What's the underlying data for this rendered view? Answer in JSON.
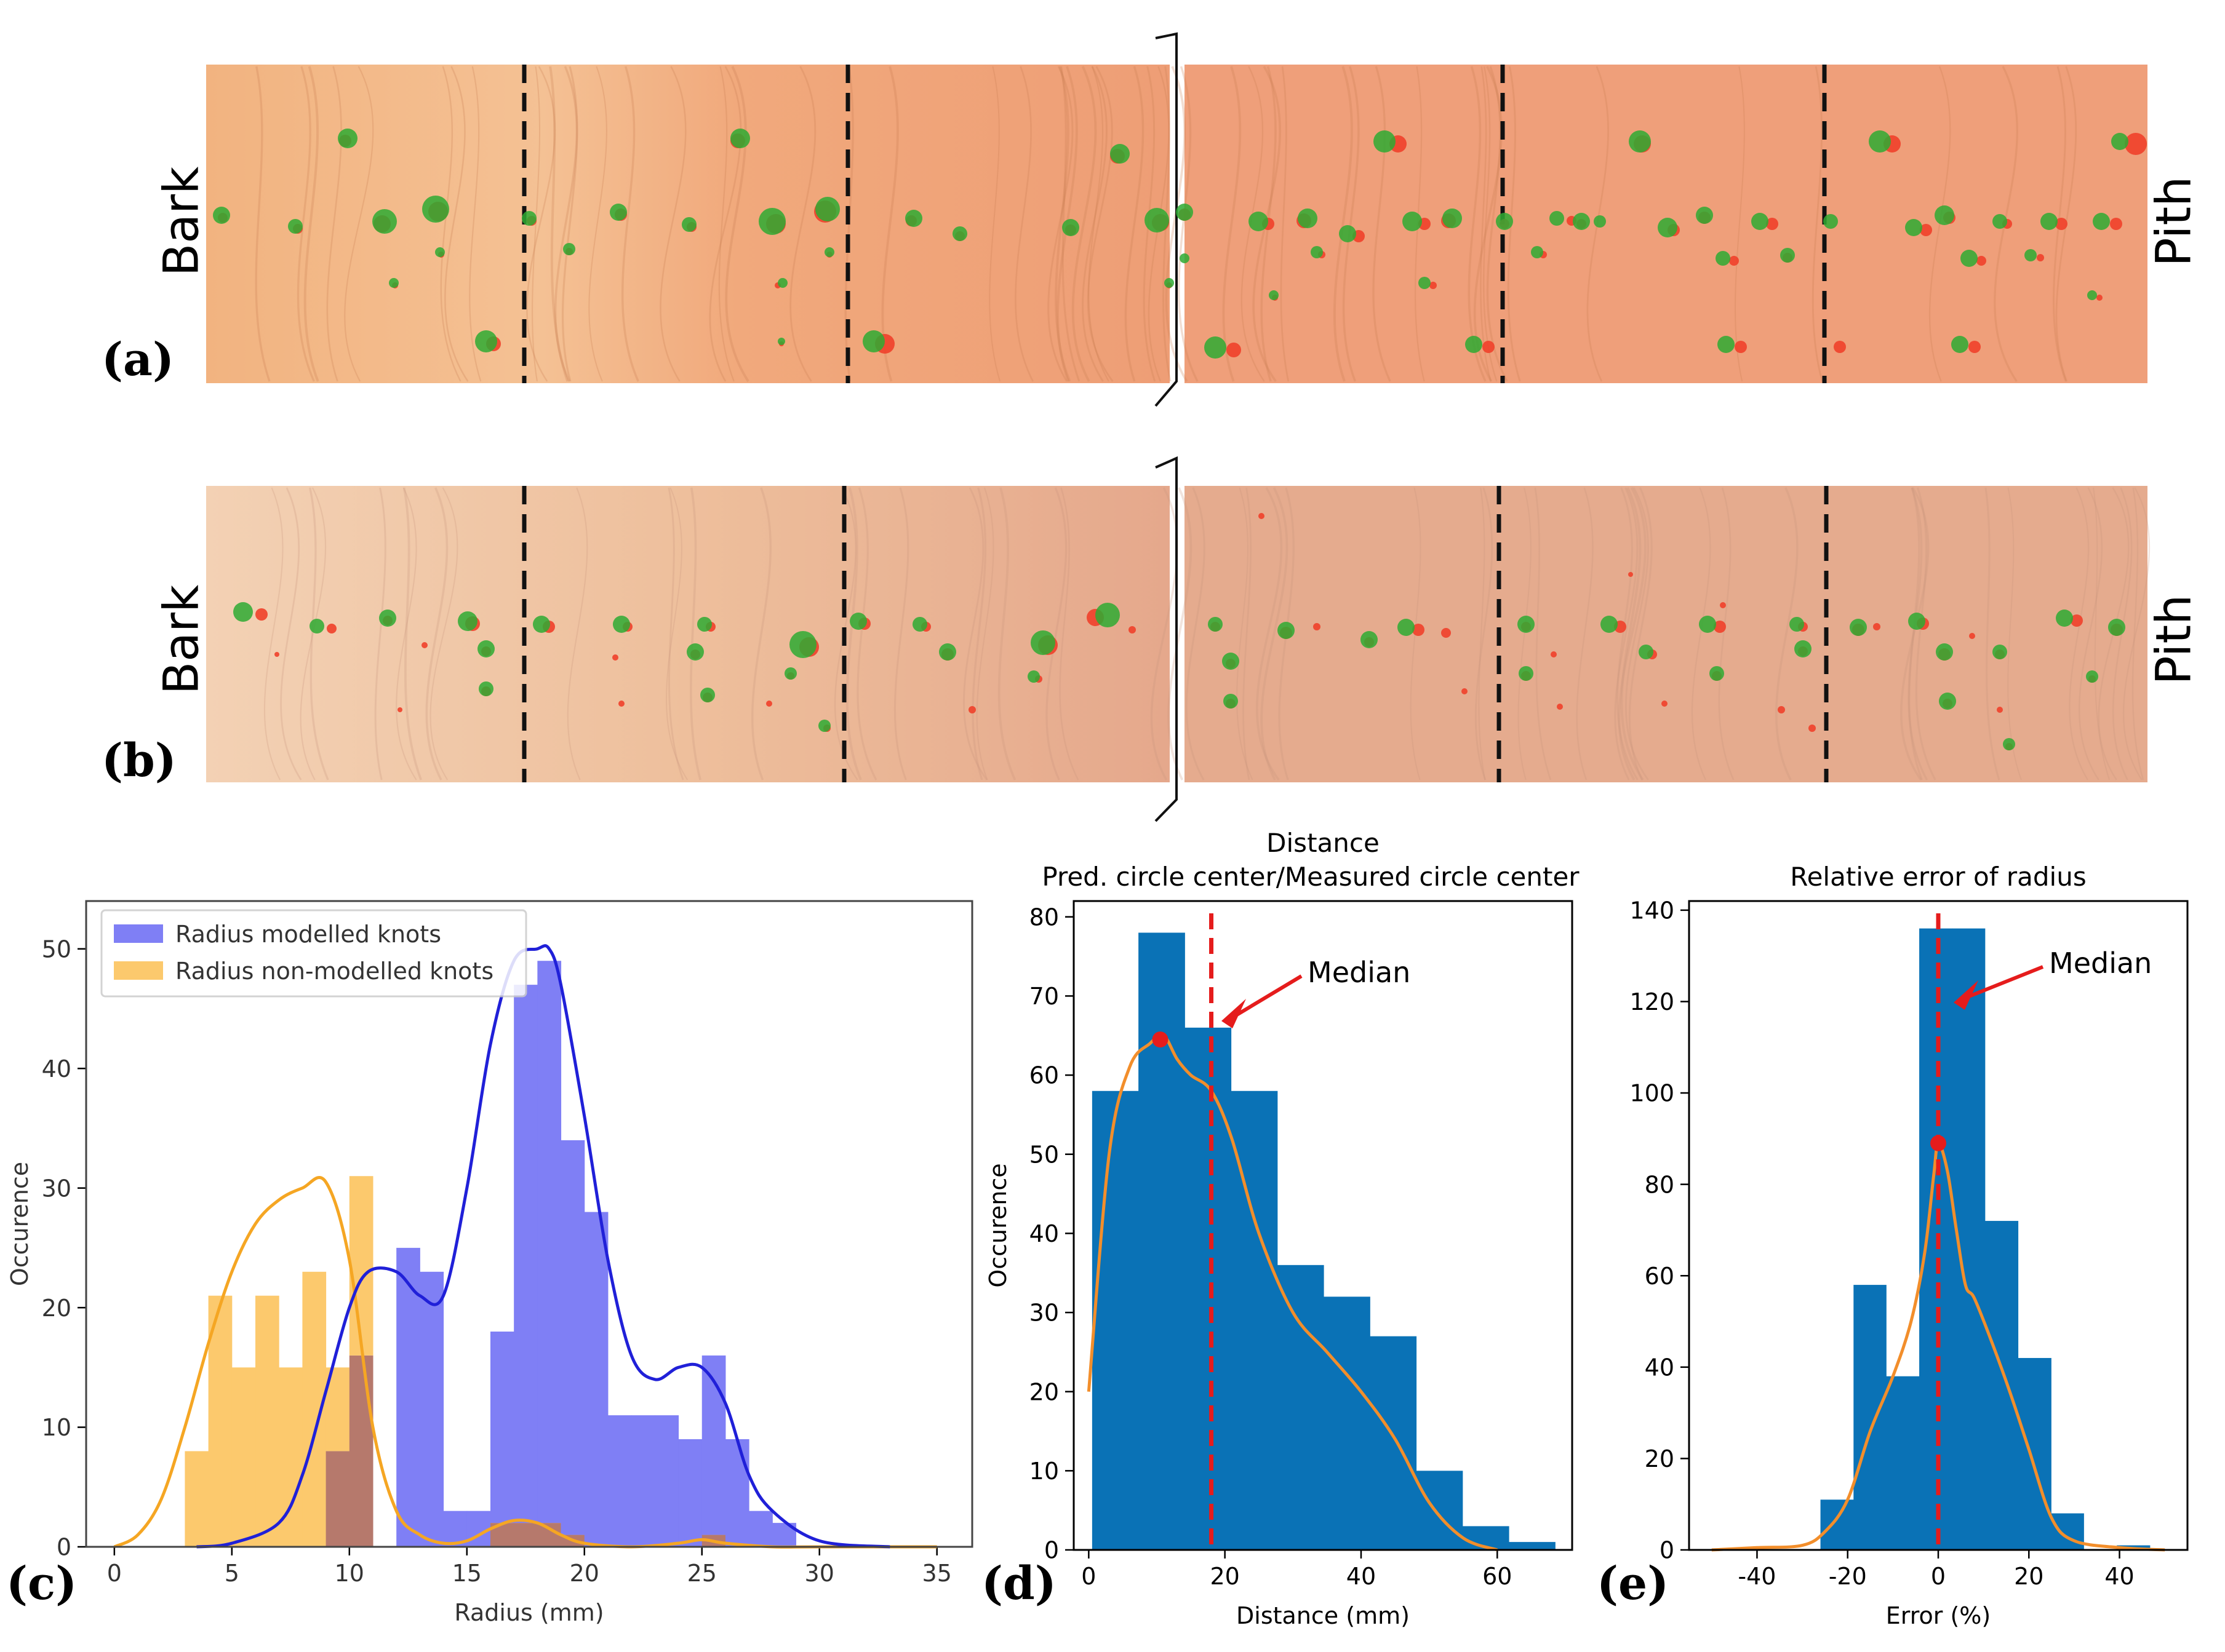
{
  "panels": {
    "a": {
      "label": "(a)",
      "left_label": "Bark",
      "right_label": "Pith"
    },
    "b": {
      "label": "(b)",
      "left_label": "Bark",
      "right_label": "Pith"
    },
    "c": {
      "label": "(c)"
    },
    "d": {
      "label": "(d)"
    },
    "e": {
      "label": "(e)"
    }
  },
  "colors": {
    "modelled": "#7f7ff5",
    "modelled_kde": "#2020d8",
    "nonmodelled": "#fcc96d",
    "overlap": "#b6796c",
    "nonmodelled_kde": "#f5a623",
    "hist": "#0a72b6",
    "kde": "#f28e2b",
    "median": "#e51c1c",
    "green_knot": "#2eaa33",
    "red_knot": "#f0402a"
  },
  "chart_data": [
    {
      "id": "c",
      "type": "bar",
      "title": "",
      "xlabel": "Radius (mm)",
      "ylabel": "Occurence",
      "xlim": [
        -1.2,
        36.5
      ],
      "ylim": [
        0,
        54
      ],
      "xticks": [
        0,
        5,
        10,
        15,
        20,
        25,
        30,
        35
      ],
      "yticks": [
        0,
        10,
        20,
        30,
        40,
        50
      ],
      "legend_position": "upper-left",
      "bin_width": 1.0,
      "series": [
        {
          "name": "Radius modelled knots",
          "bins": [
            3,
            4,
            5,
            6,
            7,
            8,
            9,
            10,
            11,
            12,
            13,
            14,
            15,
            16,
            17,
            18,
            19,
            20,
            21,
            22,
            23,
            24,
            25,
            26,
            27,
            28
          ],
          "values": [
            0,
            0,
            0,
            0,
            0,
            0,
            8,
            16,
            0,
            25,
            23,
            3,
            3,
            18,
            47,
            49,
            34,
            28,
            11,
            11,
            11,
            9,
            16,
            9,
            3,
            2
          ]
        },
        {
          "name": "Radius non-modelled knots",
          "bins": [
            3,
            4,
            5,
            6,
            7,
            8,
            9,
            10,
            11,
            12,
            13,
            14,
            15,
            16,
            17,
            18,
            19,
            20,
            21,
            22,
            23,
            24,
            25,
            26,
            27,
            28
          ],
          "values": [
            8,
            21,
            15,
            21,
            15,
            23,
            15,
            31,
            0,
            0,
            0,
            0,
            0,
            2,
            2,
            2,
            1,
            0,
            0,
            0,
            0,
            0,
            1,
            0,
            0,
            0
          ]
        }
      ],
      "kde": [
        {
          "series": "Radius modelled knots",
          "x": [
            3.5,
            5,
            7,
            8,
            9,
            10,
            10.8,
            12,
            13,
            14,
            15,
            16,
            17,
            18,
            18.5,
            19,
            20,
            21,
            22,
            23,
            24,
            25,
            26,
            27,
            28,
            30,
            33
          ],
          "y": [
            0,
            0.3,
            2,
            6,
            13,
            20,
            23,
            23,
            21,
            21,
            30,
            42,
            49,
            50,
            50,
            47,
            36,
            24,
            16,
            14,
            15,
            15,
            12,
            6,
            3,
            0.5,
            0
          ]
        },
        {
          "series": "Radius non-modelled knots",
          "x": [
            0,
            1,
            2,
            3,
            4,
            5,
            6,
            7,
            8,
            9,
            10,
            11,
            12,
            13,
            14,
            15,
            16,
            17,
            18,
            19,
            20,
            22,
            24,
            25,
            26,
            28,
            30,
            35
          ],
          "y": [
            0,
            1,
            4,
            10,
            17,
            23,
            27,
            29,
            30,
            30.5,
            24,
            10,
            3,
            1,
            0.3,
            0.5,
            1.5,
            2.2,
            2,
            1,
            0.3,
            0,
            0.3,
            0.6,
            0.3,
            0,
            0,
            0
          ]
        }
      ]
    },
    {
      "id": "d",
      "type": "bar",
      "title": "Distance",
      "subtitle": "Pred. circle center/Measured circle center",
      "xlabel": "Distance (mm)",
      "ylabel": "Occurence",
      "xlim": [
        -2.2,
        71
      ],
      "ylim": [
        0,
        82
      ],
      "xticks": [
        0,
        20,
        40,
        60
      ],
      "yticks": [
        0,
        10,
        20,
        30,
        40,
        50,
        60,
        70,
        80
      ],
      "bin_edges": [
        0.5,
        7.3,
        14.1,
        20.9,
        27.7,
        34.5,
        41.3,
        48.1,
        54.9,
        61.7,
        68.5
      ],
      "values": [
        58,
        78,
        66,
        58,
        36,
        32,
        27,
        10,
        3,
        1
      ],
      "kde": {
        "x": [
          0,
          3,
          6,
          9,
          11,
          13,
          15,
          18,
          21,
          25,
          30,
          35,
          40,
          45,
          50,
          55,
          60
        ],
        "y": [
          20,
          50,
          61,
          64,
          65,
          62,
          60,
          58,
          52,
          40,
          30,
          25,
          20,
          14,
          6,
          1.5,
          0
        ]
      },
      "median": {
        "x": 18,
        "label": "Median",
        "point": [
          10.5,
          64.5
        ]
      }
    },
    {
      "id": "e",
      "type": "bar",
      "title": "Relative error of radius",
      "xlabel": "Error (%)",
      "ylabel": "",
      "xlim": [
        -55,
        55
      ],
      "ylim": [
        0,
        142
      ],
      "xticks": [
        -40,
        -20,
        0,
        20,
        40
      ],
      "yticks": [
        0,
        20,
        40,
        60,
        80,
        100,
        120,
        140
      ],
      "bin_edges": [
        -26,
        -18.7,
        -11.5,
        -4.2,
        3.1,
        10.3,
        17.6,
        24.9,
        32.1,
        39.4,
        46.7
      ],
      "values": [
        11,
        58,
        38,
        136,
        136,
        72,
        42,
        8,
        0,
        1
      ],
      "kde": {
        "x": [
          -50,
          -40,
          -30,
          -25,
          -20,
          -15,
          -10,
          -6,
          -3,
          -1,
          0,
          2,
          4,
          6,
          8,
          12,
          16,
          20,
          25,
          30,
          40,
          50
        ],
        "y": [
          0,
          0.5,
          1,
          4,
          11,
          26,
          38,
          50,
          65,
          82,
          89,
          83,
          70,
          58,
          55,
          45,
          34,
          22,
          7,
          2,
          0.5,
          0
        ]
      },
      "median": {
        "x": 0,
        "label": "Median",
        "point": [
          0,
          89
        ]
      }
    }
  ]
}
